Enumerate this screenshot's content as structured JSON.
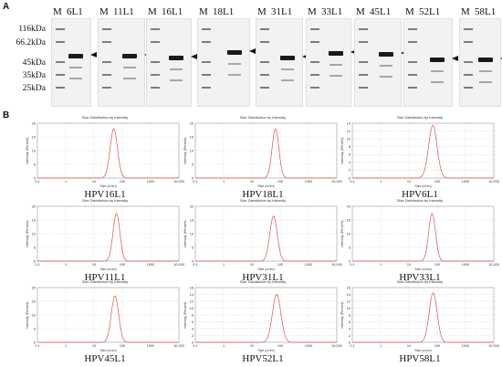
{
  "panel_labels": {
    "a": "A",
    "b": "B"
  },
  "marker": {
    "label": "M",
    "weights": [
      "116kDa",
      "66.2kDa",
      "45kDa",
      "35kDa",
      "25kDa"
    ]
  },
  "gels": [
    {
      "label": "6L1"
    },
    {
      "label": "11L1"
    },
    {
      "label": "16L1"
    },
    {
      "label": "18L1"
    },
    {
      "label": "31L1"
    },
    {
      "label": "33L1"
    },
    {
      "label": "45L1"
    },
    {
      "label": "52L1"
    },
    {
      "label": "58L1"
    }
  ],
  "chart_data": [
    {
      "type": "line",
      "caption": "HPV16L1",
      "title": "Size Distribution by Intensity",
      "xlabel": "Size (d.nm)",
      "ylabel": "Intensity (Percent)",
      "xscale": "log",
      "xlim": [
        0.1,
        10000
      ],
      "xticks": [
        "0.1",
        "1",
        "10",
        "100",
        "1000",
        "10,000"
      ],
      "ylim": [
        0,
        20
      ],
      "yticks": [
        0,
        5,
        10,
        15,
        20
      ],
      "peak_x": 50,
      "peak_y": 18,
      "width": 0.13,
      "color": "#e05050"
    },
    {
      "type": "line",
      "caption": "HPV18L1",
      "title": "Size Distribution by Intensity",
      "xlabel": "Size (d.nm)",
      "ylabel": "Intensity (Percent)",
      "xscale": "log",
      "xlim": [
        0.1,
        10000
      ],
      "xticks": [
        "0.1",
        "1",
        "10",
        "100",
        "1000",
        "10,000"
      ],
      "ylim": [
        0,
        20
      ],
      "yticks": [
        0,
        5,
        10,
        15,
        20
      ],
      "peak_x": 68,
      "peak_y": 18,
      "width": 0.12,
      "color": "#e05050"
    },
    {
      "type": "line",
      "caption": "HPV6L1",
      "title": "Size Distribution by Intensity",
      "xlabel": "Size (d.nm)",
      "ylabel": "Intensity (Percent)",
      "xscale": "log",
      "xlim": [
        0.1,
        10000
      ],
      "xticks": [
        "0.1",
        "1",
        "10",
        "100",
        "1000",
        "10,000"
      ],
      "ylim": [
        0,
        14
      ],
      "yticks": [
        0,
        2,
        4,
        6,
        8,
        10,
        12,
        14
      ],
      "peak_x": 70,
      "peak_y": 13.5,
      "width": 0.15,
      "color": "#e05050"
    },
    {
      "type": "line",
      "caption": "HPV11L1",
      "title": "Size Distribution by Intensity",
      "xlabel": "Size (d.nm)",
      "ylabel": "Intensity (Percent)",
      "xscale": "log",
      "xlim": [
        0.1,
        10000
      ],
      "xticks": [
        "0.1",
        "1",
        "10",
        "100",
        "1000",
        "10,000"
      ],
      "ylim": [
        0,
        20
      ],
      "yticks": [
        0,
        5,
        10,
        15,
        20
      ],
      "peak_x": 62,
      "peak_y": 17.5,
      "width": 0.12,
      "color": "#e05050"
    },
    {
      "type": "line",
      "caption": "HPV31L1",
      "title": "Size Distribution by Intensity",
      "xlabel": "Size (d.nm)",
      "ylabel": "Intensity (Percent)",
      "xscale": "log",
      "xlim": [
        0.1,
        10000
      ],
      "xticks": [
        "0.1",
        "1",
        "10",
        "100",
        "1000",
        "10,000"
      ],
      "ylim": [
        0,
        20
      ],
      "yticks": [
        0,
        5,
        10,
        15,
        20
      ],
      "peak_x": 58,
      "peak_y": 16.5,
      "width": 0.13,
      "color": "#e05050"
    },
    {
      "type": "line",
      "caption": "HPV33L1",
      "title": "Size Distribution by Intensity",
      "xlabel": "Size (d.nm)",
      "ylabel": "Intensity (Percent)",
      "xscale": "log",
      "xlim": [
        0.1,
        10000
      ],
      "xticks": [
        "0.1",
        "1",
        "10",
        "100",
        "1000",
        "10,000"
      ],
      "ylim": [
        0,
        20
      ],
      "yticks": [
        0,
        5,
        10,
        15,
        20
      ],
      "peak_x": 66,
      "peak_y": 17.5,
      "width": 0.12,
      "color": "#e05050"
    },
    {
      "type": "line",
      "caption": "HPV45L1",
      "title": "Size Distribution by Intensity",
      "xlabel": "Size (d.nm)",
      "ylabel": "Intensity (Percent)",
      "xscale": "log",
      "xlim": [
        0.1,
        10000
      ],
      "xticks": [
        "0.1",
        "1",
        "10",
        "100",
        "1000",
        "10,000"
      ],
      "ylim": [
        0,
        20
      ],
      "yticks": [
        0,
        5,
        10,
        15,
        20
      ],
      "peak_x": 55,
      "peak_y": 17,
      "width": 0.13,
      "color": "#e05050"
    },
    {
      "type": "line",
      "caption": "HPV52L1",
      "title": "Size Distribution by Intensity",
      "xlabel": "Size (d.nm)",
      "ylabel": "Intensity (Percent)",
      "xscale": "log",
      "xlim": [
        0.1,
        10000
      ],
      "xticks": [
        "0.1",
        "1",
        "10",
        "100",
        "1000",
        "10,000"
      ],
      "ylim": [
        0,
        16
      ],
      "yticks": [
        0,
        2,
        4,
        6,
        8,
        10,
        12,
        14,
        16
      ],
      "peak_x": 75,
      "peak_y": 14,
      "width": 0.15,
      "color": "#e05050"
    },
    {
      "type": "line",
      "caption": "HPV58L1",
      "title": "Size Distribution by Intensity",
      "xlabel": "Size (d.nm)",
      "ylabel": "Intensity (Percent)",
      "xscale": "log",
      "xlim": [
        0.1,
        10000
      ],
      "xticks": [
        "0.1",
        "1",
        "10",
        "100",
        "1000",
        "10,000"
      ],
      "ylim": [
        0,
        16
      ],
      "yticks": [
        0,
        2,
        4,
        6,
        8,
        10,
        12,
        14,
        16
      ],
      "peak_x": 72,
      "peak_y": 14.5,
      "width": 0.14,
      "color": "#e05050"
    }
  ]
}
